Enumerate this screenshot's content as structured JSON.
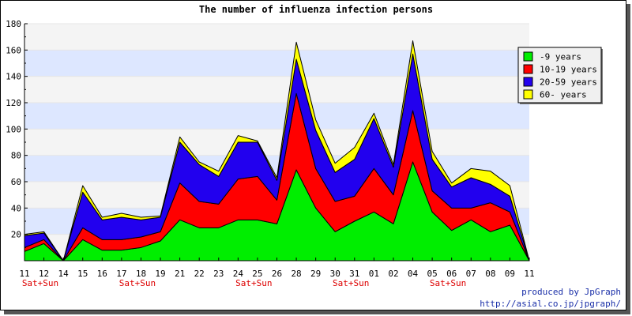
{
  "chart_data": {
    "type": "area",
    "title": "The number of influenza infection persons",
    "xlabel": "",
    "ylabel": "",
    "ylim": [
      0,
      180
    ],
    "y_ticks": [
      20,
      40,
      60,
      80,
      100,
      120,
      140,
      160,
      180
    ],
    "grid": true,
    "stacked": true,
    "legend_position": "top-right",
    "categories": [
      "11",
      "12",
      "14",
      "15",
      "16",
      "17",
      "18",
      "19",
      "21",
      "22",
      "23",
      "24",
      "25",
      "26",
      "28",
      "29",
      "30",
      "31",
      "01",
      "02",
      "04",
      "05",
      "06",
      "07",
      "08",
      "09",
      "11"
    ],
    "weekend_label": "Sat+Sun",
    "weekend_indices": [
      0,
      5,
      11,
      16,
      21
    ],
    "series": [
      {
        "name": "-9 years",
        "color": "#00ee00",
        "values": [
          7,
          13,
          0,
          16,
          8,
          8,
          10,
          15,
          31,
          25,
          25,
          31,
          31,
          28,
          69,
          40,
          22,
          30,
          37,
          28,
          75,
          37,
          23,
          31,
          22,
          27,
          0
        ]
      },
      {
        "name": "10-19 years",
        "color": "#ff0000",
        "values": [
          3,
          3,
          0,
          9,
          8,
          8,
          8,
          7,
          28,
          20,
          18,
          31,
          33,
          18,
          58,
          30,
          23,
          19,
          33,
          22,
          39,
          16,
          17,
          9,
          22,
          10,
          0
        ]
      },
      {
        "name": "20-59 years",
        "color": "#2200ee",
        "values": [
          9,
          5,
          0,
          27,
          15,
          17,
          13,
          11,
          31,
          28,
          21,
          28,
          26,
          15,
          26,
          29,
          22,
          28,
          38,
          21,
          43,
          24,
          16,
          23,
          14,
          12,
          0
        ]
      },
      {
        "name": "60- years",
        "color": "#ffff00",
        "values": [
          1,
          1,
          0,
          5,
          2,
          3,
          2,
          1,
          4,
          2,
          4,
          5,
          1,
          2,
          13,
          8,
          7,
          9,
          4,
          2,
          10,
          6,
          3,
          7,
          10,
          8,
          0
        ]
      }
    ]
  },
  "footer": {
    "line1": "produced by JpGraph",
    "line2": "http://asial.co.jp/jpgraph/"
  }
}
